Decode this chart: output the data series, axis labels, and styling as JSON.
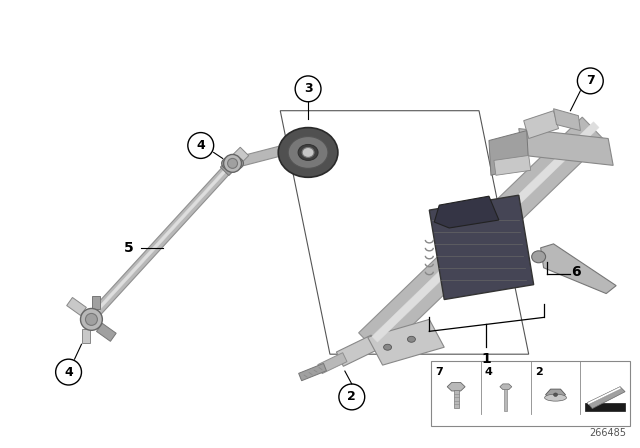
{
  "bg_color": "#f5f5f5",
  "diagram_num": "266485",
  "fig_width": 6.4,
  "fig_height": 4.48,
  "dpi": 100
}
